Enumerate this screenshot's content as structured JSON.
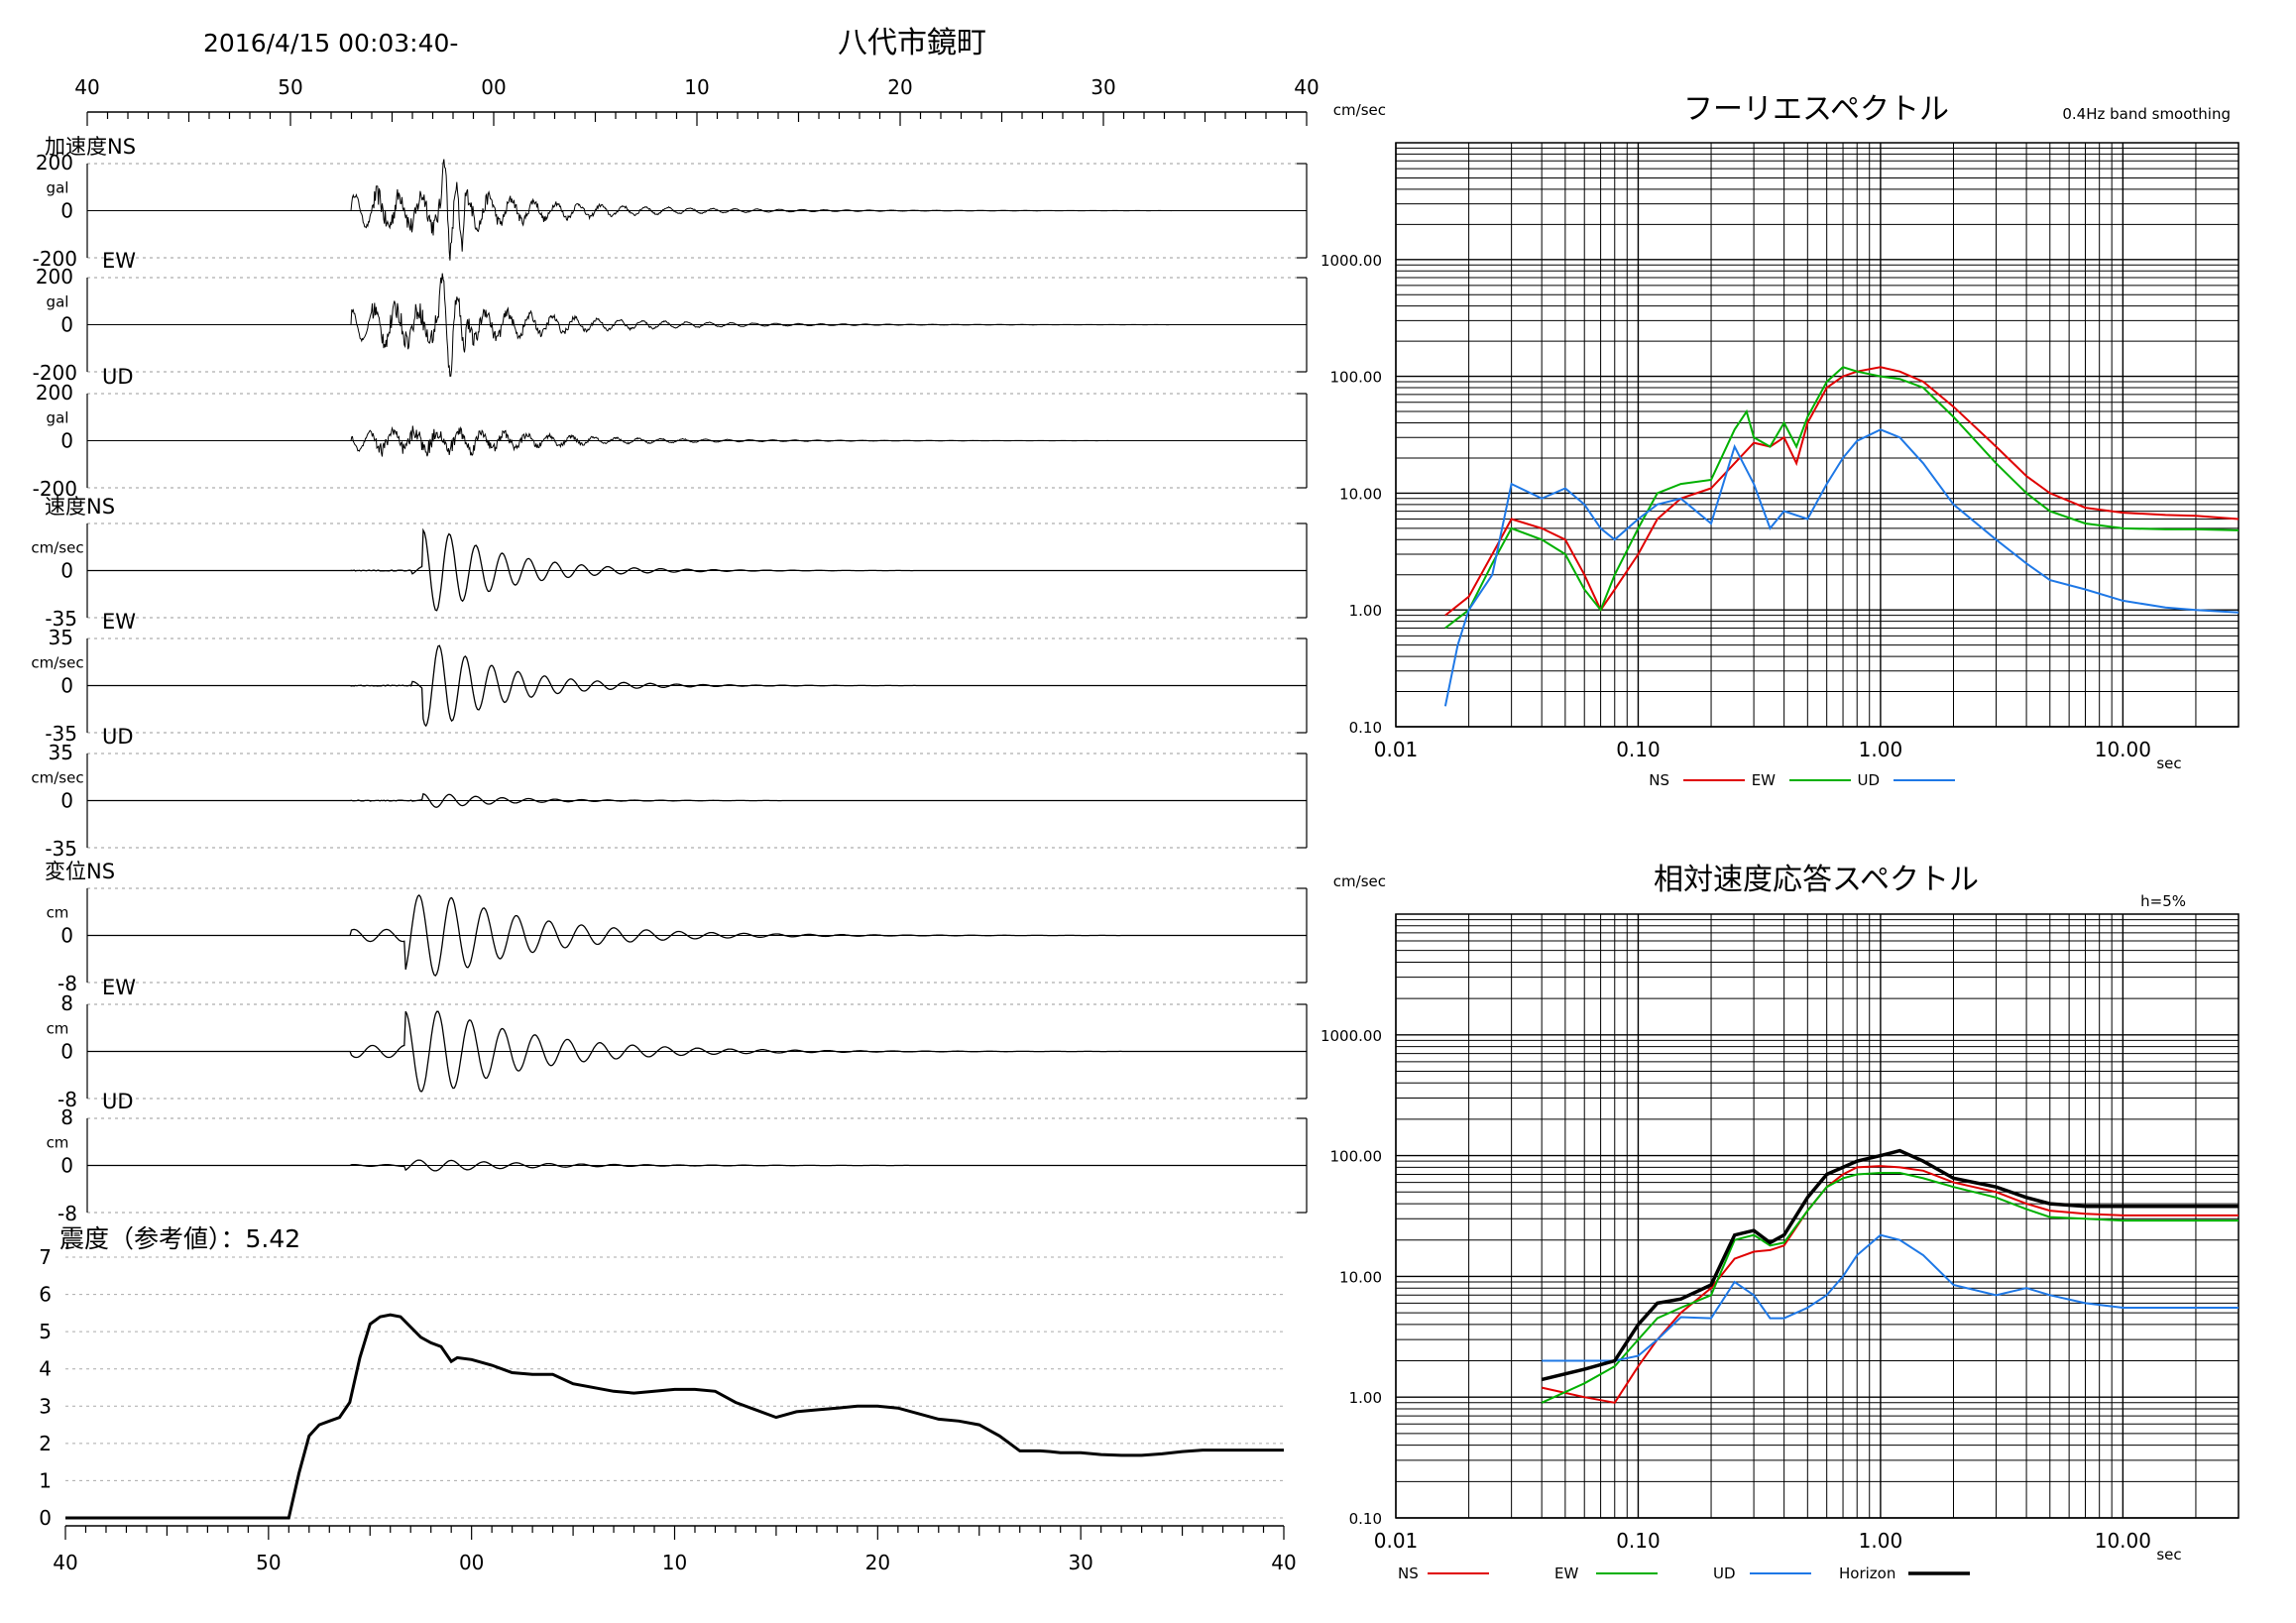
{
  "header": {
    "datetime": "2016/4/15 00:03:40-",
    "location": "八代市鏡町"
  },
  "waveforms": {
    "time_ticks": [
      "40",
      "50",
      "00",
      "10",
      "20",
      "30",
      "40"
    ],
    "panels": [
      {
        "group_label": "加速度",
        "component": "NS",
        "unit": "gal",
        "top_label": "200",
        "zero_label": "0",
        "bottom_label": "-200",
        "peak": 200
      },
      {
        "group_label": "",
        "component": "EW",
        "unit": "gal",
        "top_label": "200",
        "zero_label": "0",
        "bottom_label": "-200",
        "peak": 200
      },
      {
        "group_label": "",
        "component": "UD",
        "unit": "gal",
        "top_label": "200",
        "zero_label": "0",
        "bottom_label": "-200",
        "peak": 200
      },
      {
        "group_label": "速度",
        "component": "NS",
        "unit": "cm/sec",
        "top_label": "",
        "zero_label": "0",
        "bottom_label": "-35",
        "peak": 35
      },
      {
        "group_label": "",
        "component": "EW",
        "unit": "cm/sec",
        "top_label": "35",
        "zero_label": "0",
        "bottom_label": "-35",
        "peak": 35
      },
      {
        "group_label": "",
        "component": "UD",
        "unit": "cm/sec",
        "top_label": "35",
        "zero_label": "0",
        "bottom_label": "-35",
        "peak": 35
      },
      {
        "group_label": "変位",
        "component": "NS",
        "unit": "cm",
        "top_label": "",
        "zero_label": "0",
        "bottom_label": "-8",
        "peak": 8
      },
      {
        "group_label": "",
        "component": "EW",
        "unit": "cm",
        "top_label": "8",
        "zero_label": "0",
        "bottom_label": "-8",
        "peak": 8
      },
      {
        "group_label": "",
        "component": "UD",
        "unit": "cm",
        "top_label": "8",
        "zero_label": "0",
        "bottom_label": "-8",
        "peak": 8
      }
    ]
  },
  "intensity": {
    "title": "震度（参考値）：5.42",
    "y_ticks": [
      "0",
      "1",
      "2",
      "3",
      "4",
      "5",
      "6",
      "7"
    ],
    "x_ticks": [
      "40",
      "50",
      "00",
      "10",
      "20",
      "30",
      "40"
    ]
  },
  "fourier": {
    "title": "フーリエスペクトル",
    "subtitle": "0.4Hz band smoothing",
    "y_unit": "cm/sec",
    "x_unit": "sec",
    "y_ticks": [
      "0.10",
      "1.00",
      "10.00",
      "100.00",
      "1000.00"
    ],
    "x_ticks": [
      "0.01",
      "0.10",
      "1.00",
      "10.00"
    ],
    "legend": [
      {
        "name": "NS",
        "color": "#e00000"
      },
      {
        "name": "EW",
        "color": "#00b000"
      },
      {
        "name": "UD",
        "color": "#1e78e6"
      }
    ]
  },
  "response": {
    "title": "相対速度応答スペクトル",
    "damping": "h=5%",
    "y_unit": "cm/sec",
    "x_unit": "sec",
    "y_ticks": [
      "0.10",
      "1.00",
      "10.00",
      "100.00",
      "1000.00"
    ],
    "x_ticks": [
      "0.01",
      "0.10",
      "1.00",
      "10.00"
    ],
    "legend": [
      {
        "name": "NS",
        "color": "#e00000"
      },
      {
        "name": "EW",
        "color": "#00b000"
      },
      {
        "name": "UD",
        "color": "#1e78e6"
      },
      {
        "name": "Horizon",
        "color": "#000000"
      }
    ]
  },
  "chart_data": [
    {
      "type": "line",
      "title": "震度（参考値）：5.42",
      "xlabel": "",
      "ylabel": "",
      "x_unit": "seconds after 2016/4/15 00:03:40",
      "ylim": [
        0,
        7
      ],
      "xlim": [
        0,
        60
      ],
      "series": [
        {
          "x": [
            0,
            11.0,
            11.5,
            12.0,
            12.5,
            13.0,
            13.5,
            14.0,
            14.5,
            15.0,
            15.5,
            16.0,
            16.5,
            17.5,
            18.0,
            18.5,
            19.0,
            19.3,
            20.0,
            21.0,
            22.0,
            23.0,
            24.0,
            25.0,
            27.0,
            28.0,
            30.0,
            31.0,
            32.0,
            33.0,
            35.0,
            36.0,
            37.0,
            38.0,
            39.0,
            40.0,
            41.0,
            42.0,
            43.0,
            44.0,
            45.0,
            46.0,
            47.0,
            48.0,
            48.5,
            49.0,
            50.0,
            51.0,
            52.0,
            53.0,
            54.0,
            55.0,
            56.0,
            57.0,
            58.0,
            59.0,
            60.0
          ],
          "values": [
            0,
            0,
            1.2,
            2.2,
            2.5,
            2.6,
            2.7,
            3.1,
            4.3,
            5.2,
            5.4,
            5.45,
            5.4,
            4.85,
            4.7,
            4.6,
            4.2,
            4.3,
            4.25,
            4.1,
            3.9,
            3.85,
            3.85,
            3.6,
            3.4,
            3.35,
            3.45,
            3.45,
            3.4,
            3.1,
            2.7,
            2.85,
            2.9,
            2.95,
            3.0,
            3.0,
            2.95,
            2.8,
            2.65,
            2.6,
            2.5,
            2.2,
            1.8,
            1.8,
            1.78,
            1.75,
            1.75,
            1.7,
            1.68,
            1.68,
            1.72,
            1.78,
            1.82,
            1.82,
            1.82,
            1.82,
            1.82
          ]
        }
      ]
    },
    {
      "type": "line",
      "title": "フーリエスペクトル",
      "xlabel": "sec",
      "ylabel": "cm/sec",
      "log_x": true,
      "log_y": true,
      "xlim": [
        0.01,
        30
      ],
      "ylim": [
        0.1,
        10000
      ],
      "series": [
        {
          "name": "NS",
          "x": [
            0.016,
            0.02,
            0.025,
            0.03,
            0.04,
            0.05,
            0.06,
            0.07,
            0.08,
            0.1,
            0.12,
            0.15,
            0.2,
            0.25,
            0.3,
            0.35,
            0.4,
            0.45,
            0.5,
            0.6,
            0.7,
            0.8,
            1.0,
            1.2,
            1.5,
            2.0,
            3.0,
            4.0,
            5.0,
            7.0,
            10.0,
            15.0,
            20.0,
            30.0
          ],
          "values": [
            0.9,
            1.3,
            3.0,
            6.0,
            5.0,
            4.0,
            2.0,
            1.0,
            1.5,
            3.0,
            6.0,
            9.0,
            11.0,
            18.0,
            27.0,
            25.0,
            30.0,
            18.0,
            40.0,
            80.0,
            100.0,
            110.0,
            120.0,
            110.0,
            90.0,
            55.0,
            25.0,
            14.0,
            10.0,
            7.5,
            6.8,
            6.5,
            6.4,
            6.0
          ]
        },
        {
          "name": "EW",
          "x": [
            0.016,
            0.02,
            0.025,
            0.03,
            0.04,
            0.05,
            0.06,
            0.07,
            0.08,
            0.1,
            0.12,
            0.15,
            0.2,
            0.25,
            0.28,
            0.3,
            0.35,
            0.4,
            0.45,
            0.5,
            0.6,
            0.7,
            0.8,
            1.0,
            1.2,
            1.5,
            2.0,
            3.0,
            4.0,
            5.0,
            7.0,
            10.0,
            15.0,
            20.0,
            30.0
          ],
          "values": [
            0.7,
            1.0,
            2.5,
            5.0,
            4.0,
            3.0,
            1.5,
            1.0,
            2.0,
            5.0,
            10.0,
            12.0,
            13.0,
            35.0,
            50.0,
            30.0,
            25.0,
            40.0,
            25.0,
            45.0,
            90.0,
            120.0,
            110.0,
            100.0,
            95.0,
            80.0,
            45.0,
            18.0,
            10.0,
            7.0,
            5.5,
            5.0,
            4.9,
            4.9,
            4.8
          ]
        },
        {
          "name": "UD",
          "x": [
            0.016,
            0.018,
            0.02,
            0.025,
            0.03,
            0.04,
            0.05,
            0.06,
            0.07,
            0.08,
            0.1,
            0.12,
            0.15,
            0.2,
            0.25,
            0.3,
            0.35,
            0.4,
            0.5,
            0.6,
            0.7,
            0.8,
            1.0,
            1.2,
            1.5,
            2.0,
            3.0,
            4.0,
            5.0,
            7.0,
            10.0,
            15.0,
            20.0,
            30.0
          ],
          "values": [
            0.15,
            0.5,
            1.0,
            2.0,
            12.0,
            9.0,
            11.0,
            8.0,
            5.0,
            4.0,
            6.0,
            8.0,
            9.0,
            5.5,
            25.0,
            12.0,
            5.0,
            7.0,
            6.0,
            12.0,
            20.0,
            28.0,
            35.0,
            30.0,
            18.0,
            8.0,
            4.0,
            2.5,
            1.8,
            1.5,
            1.2,
            1.05,
            1.0,
            0.95
          ]
        }
      ]
    },
    {
      "type": "line",
      "title": "相対速度応答スペクトル",
      "xlabel": "sec",
      "ylabel": "cm/sec",
      "log_x": true,
      "log_y": true,
      "xlim": [
        0.01,
        30
      ],
      "ylim": [
        0.1,
        10000
      ],
      "series": [
        {
          "name": "NS",
          "x": [
            0.04,
            0.06,
            0.08,
            0.1,
            0.12,
            0.15,
            0.2,
            0.25,
            0.3,
            0.35,
            0.4,
            0.5,
            0.6,
            0.7,
            0.8,
            1.0,
            1.2,
            1.5,
            2.0,
            3.0,
            4.0,
            5.0,
            7.0,
            10.0,
            15.0,
            20.0,
            30.0
          ],
          "values": [
            1.2,
            1.0,
            0.9,
            1.8,
            3.0,
            5.0,
            8.0,
            14.0,
            16.0,
            16.5,
            18.0,
            35.0,
            55.0,
            70.0,
            80.0,
            82.0,
            80.0,
            75.0,
            60.0,
            50.0,
            40.0,
            35.0,
            33.0,
            32.0,
            32.0,
            32.0,
            32.0
          ]
        },
        {
          "name": "EW",
          "x": [
            0.04,
            0.06,
            0.08,
            0.1,
            0.12,
            0.15,
            0.2,
            0.25,
            0.3,
            0.35,
            0.4,
            0.5,
            0.6,
            0.7,
            0.8,
            1.0,
            1.2,
            1.5,
            2.0,
            3.0,
            4.0,
            5.0,
            7.0,
            10.0,
            15.0,
            20.0,
            30.0
          ],
          "values": [
            0.9,
            1.3,
            1.8,
            3.0,
            4.5,
            5.5,
            7.0,
            20.0,
            22.0,
            18.0,
            19.0,
            35.0,
            55.0,
            65.0,
            70.0,
            72.0,
            72.0,
            65.0,
            55.0,
            45.0,
            36.0,
            31.0,
            30.0,
            29.0,
            29.0,
            29.0,
            29.0
          ]
        },
        {
          "name": "UD",
          "x": [
            0.04,
            0.06,
            0.08,
            0.1,
            0.12,
            0.15,
            0.2,
            0.25,
            0.3,
            0.35,
            0.4,
            0.5,
            0.6,
            0.7,
            0.8,
            1.0,
            1.2,
            1.5,
            2.0,
            3.0,
            4.0,
            5.0,
            7.0,
            10.0,
            15.0,
            20.0,
            30.0
          ],
          "values": [
            2.0,
            2.0,
            2.0,
            2.2,
            3.0,
            4.6,
            4.5,
            9.0,
            7.0,
            4.5,
            4.5,
            5.5,
            7.0,
            10.0,
            15.0,
            22.0,
            20.0,
            15.0,
            8.5,
            7.0,
            8.0,
            7.0,
            6.0,
            5.5,
            5.5,
            5.5,
            5.5
          ]
        },
        {
          "name": "Horizon",
          "x": [
            0.04,
            0.06,
            0.08,
            0.1,
            0.12,
            0.15,
            0.2,
            0.25,
            0.3,
            0.35,
            0.4,
            0.5,
            0.6,
            0.7,
            0.8,
            1.0,
            1.2,
            1.5,
            2.0,
            3.0,
            4.0,
            5.0,
            7.0,
            10.0,
            15.0,
            20.0,
            30.0
          ],
          "values": [
            1.4,
            1.7,
            2.0,
            4.0,
            6.0,
            6.5,
            8.5,
            22.0,
            24.0,
            19.0,
            22.0,
            45.0,
            70.0,
            80.0,
            90.0,
            100.0,
            110.0,
            90.0,
            65.0,
            55.0,
            45.0,
            40.0,
            38.0,
            38.0,
            38.0,
            38.0,
            38.0
          ]
        }
      ]
    }
  ]
}
